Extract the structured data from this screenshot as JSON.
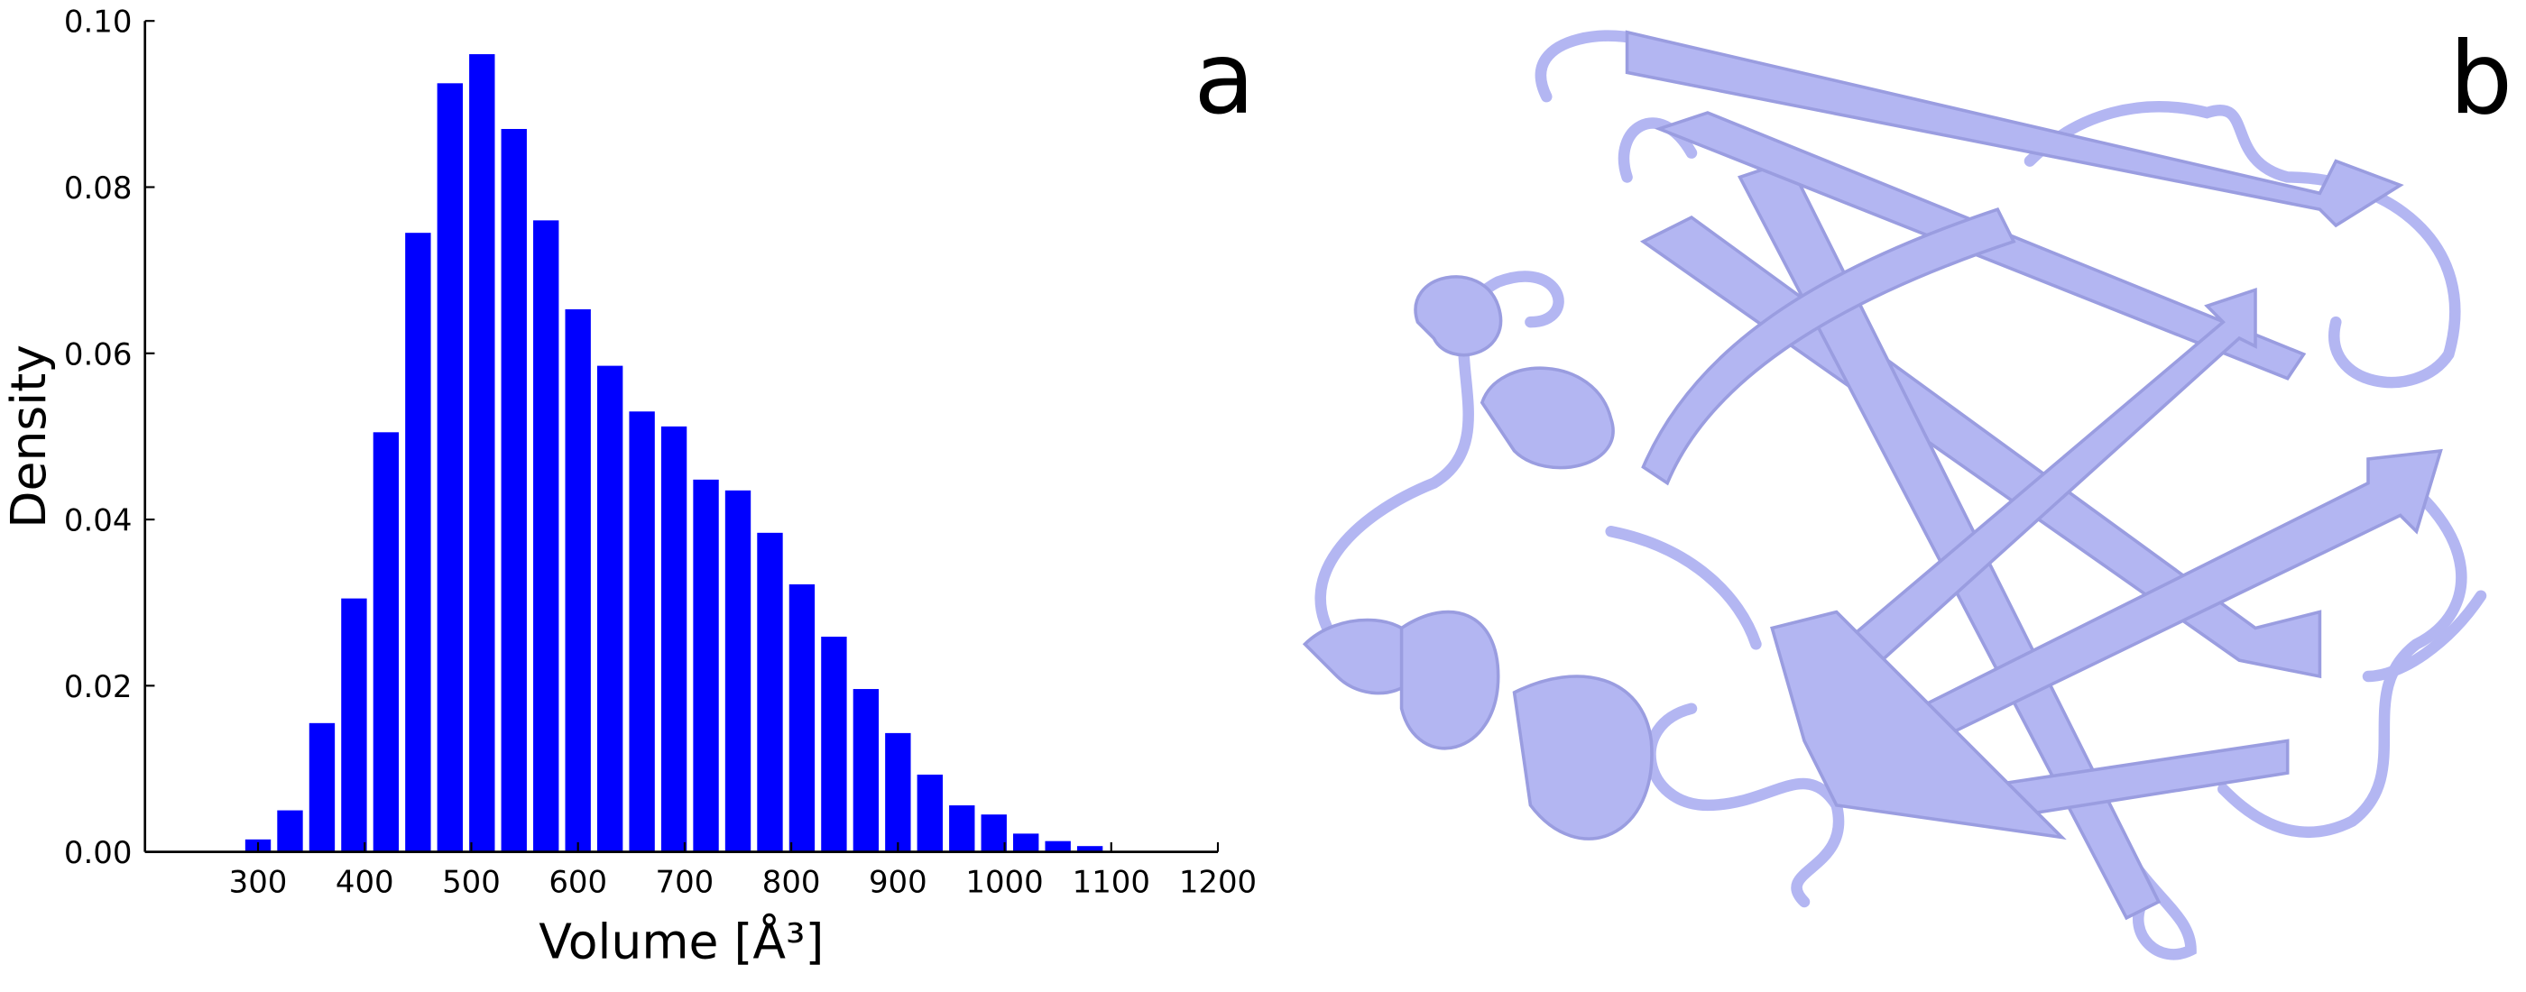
{
  "chart_data": {
    "type": "histogram",
    "xlabel": "Volume [Å³]",
    "ylabel": "Density",
    "panel_labels": [
      "a",
      "b"
    ],
    "color": "#0000ff",
    "bins": [
      285,
      315,
      345,
      375,
      405,
      435,
      465,
      495,
      525,
      555,
      585,
      615,
      645,
      675,
      705,
      735,
      765,
      795,
      825,
      855,
      885,
      915,
      945,
      975,
      1005,
      1035,
      1065,
      1095
    ],
    "values": [
      0.0015,
      0.005,
      0.0155,
      0.0305,
      0.0505,
      0.0745,
      0.0925,
      0.096,
      0.087,
      0.076,
      0.0653,
      0.0585,
      0.053,
      0.0512,
      0.0448,
      0.0435,
      0.0384,
      0.0322,
      0.0259,
      0.0196,
      0.0143,
      0.0093,
      0.0056,
      0.0045,
      0.0022,
      0.0013,
      0.0007
    ],
    "xlim": [
      194,
      1200
    ],
    "xticks": [
      300,
      400,
      500,
      600,
      700,
      800,
      900,
      1000,
      1100,
      1200
    ],
    "ylim": [
      0,
      0.1
    ],
    "yticks": [
      {
        "value": 0,
        "label": "0.00"
      },
      {
        "value": 0.02,
        "label": "0.02"
      },
      {
        "value": 0.04,
        "label": "0.04"
      },
      {
        "value": 0.06,
        "label": "0.06"
      },
      {
        "value": 0.08,
        "label": "0.08"
      },
      {
        "value": 0.1,
        "label": "0.10"
      }
    ]
  }
}
